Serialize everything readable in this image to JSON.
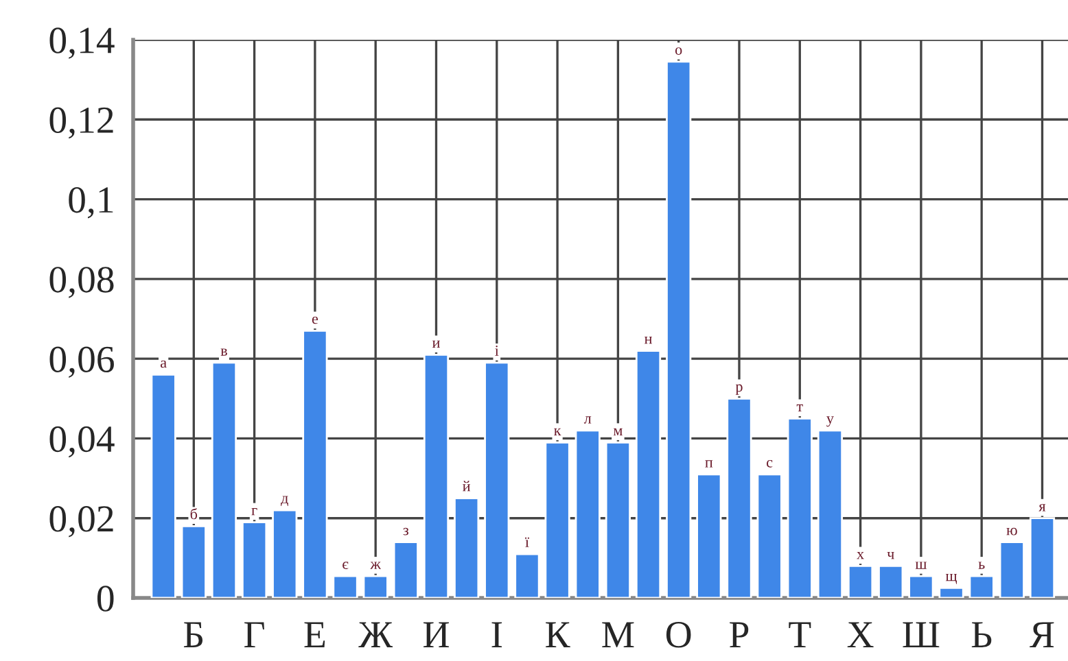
{
  "chart_data": {
    "type": "bar",
    "categories": [
      null,
      "Б",
      null,
      "Г",
      null,
      "Е",
      null,
      "Ж",
      null,
      "И",
      null,
      "І",
      null,
      "К",
      null,
      "М",
      null,
      "О",
      null,
      "Р",
      null,
      "Т",
      null,
      "Х",
      null,
      "Ш",
      null,
      "Ь",
      null,
      "Я"
    ],
    "values": [
      0.056,
      0.018,
      0.059,
      0.019,
      0.022,
      0.067,
      0.0055,
      0.0055,
      0.014,
      0.061,
      0.025,
      0.059,
      0.011,
      0.039,
      0.042,
      0.039,
      0.062,
      0.1345,
      0.031,
      0.05,
      0.031,
      0.045,
      0.042,
      0.008,
      0.008,
      0.0055,
      0.0025,
      0.0055,
      0.014,
      0.02
    ],
    "value_labels": [
      "а",
      "б",
      "в",
      "г",
      "д",
      "е",
      "є",
      "ж",
      "з",
      "и",
      "й",
      "і",
      "ї",
      "к",
      "л",
      "м",
      "н",
      "о",
      "п",
      "р",
      "с",
      "т",
      "у",
      "х",
      "ч",
      "ш",
      "щ",
      "ь",
      "ю",
      "я"
    ],
    "color": "#3f87e8",
    "ylim": [
      0,
      0.14
    ],
    "yticks": [
      0,
      {
        "value": 0.02,
        "label": "0,02"
      },
      {
        "value": 0.04,
        "label": "0,04"
      },
      {
        "value": 0.06,
        "label": "0,06"
      },
      {
        "value": 0.08,
        "label": "0,08"
      },
      {
        "value": 0.1,
        "label": "0,1"
      },
      {
        "value": 0.12,
        "label": "0,12"
      },
      {
        "value": 0.14,
        "label": "0,14"
      }
    ],
    "grid": true
  }
}
